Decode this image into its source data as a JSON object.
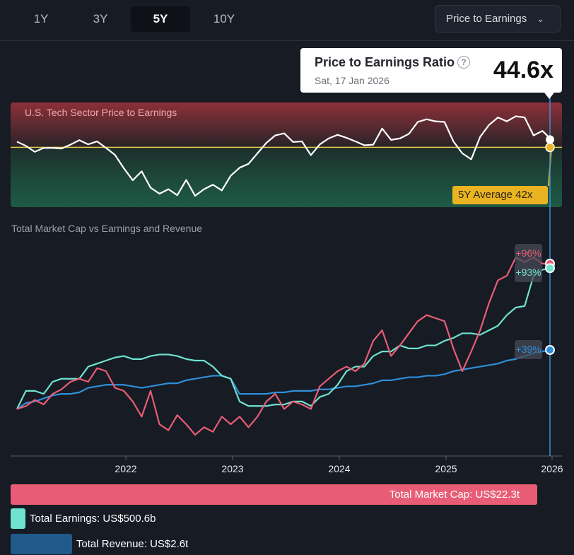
{
  "tabs": [
    {
      "label": "1Y",
      "active": false
    },
    {
      "label": "3Y",
      "active": false
    },
    {
      "label": "5Y",
      "active": true
    },
    {
      "label": "10Y",
      "active": false
    }
  ],
  "metric_dropdown": {
    "selected": "Price to Earnings",
    "icon": "chevron-down-icon"
  },
  "tooltip": {
    "title": "Price to Earnings Ratio",
    "help_icon": "?",
    "date": "Sat, 17 Jan 2026",
    "value": "44.6x"
  },
  "colors": {
    "market_cap": "#e85d75",
    "earnings": "#6fe3cf",
    "revenue": "#2f8fd8",
    "average": "#e9b321",
    "cursor": "#3d8fd6",
    "background": "#161b24"
  },
  "chart_data": [
    {
      "type": "line",
      "title": "U.S. Tech Sector Price to Earnings",
      "ylim": [
        22,
        57
      ],
      "average": {
        "label": "5Y Average 42x",
        "value": 42
      },
      "x": [
        "2021-01",
        "2021-02",
        "2021-03",
        "2021-04",
        "2021-05",
        "2021-06",
        "2021-07",
        "2021-08",
        "2021-09",
        "2021-10",
        "2021-11",
        "2021-12",
        "2022-01",
        "2022-02",
        "2022-03",
        "2022-04",
        "2022-05",
        "2022-06",
        "2022-07",
        "2022-08",
        "2022-09",
        "2022-10",
        "2022-11",
        "2022-12",
        "2023-01",
        "2023-02",
        "2023-03",
        "2023-04",
        "2023-05",
        "2023-06",
        "2023-07",
        "2023-08",
        "2023-09",
        "2023-10",
        "2023-11",
        "2023-12",
        "2024-01",
        "2024-02",
        "2024-03",
        "2024-04",
        "2024-05",
        "2024-06",
        "2024-07",
        "2024-08",
        "2024-09",
        "2024-10",
        "2024-11",
        "2024-12",
        "2025-01",
        "2025-02",
        "2025-03",
        "2025-04",
        "2025-05",
        "2025-06",
        "2025-07",
        "2025-08",
        "2025-09",
        "2025-10",
        "2025-11",
        "2025-12",
        "2026-01"
      ],
      "values": [
        43.9,
        42.5,
        40.5,
        41.8,
        41.8,
        41.6,
        42.9,
        44.4,
        43.0,
        44.0,
        41.8,
        39.5,
        35.0,
        31.0,
        34.0,
        28.5,
        26.5,
        28.0,
        26.0,
        31.1,
        25.8,
        28.0,
        29.5,
        27.6,
        32.5,
        35.2,
        36.5,
        40.0,
        43.5,
        46.0,
        46.7,
        43.8,
        44.0,
        39.4,
        43.0,
        45.0,
        46.2,
        45.2,
        44.0,
        42.7,
        42.9,
        48.3,
        44.5,
        45.0,
        46.5,
        50.5,
        51.4,
        50.7,
        50.5,
        44.0,
        40.0,
        38.0,
        45.5,
        49.5,
        52.0,
        50.7,
        52.4,
        52.0,
        46.0,
        47.5,
        44.6
      ]
    },
    {
      "type": "line",
      "title": "Total Market Cap vs Earnings and Revenue",
      "ylim": [
        -31,
        116
      ],
      "xticks": [
        "2022",
        "2023",
        "2024",
        "2025",
        "2026"
      ],
      "series": [
        {
          "key": "market_cap",
          "end_label": "+96%",
          "values": [
            0,
            2,
            6,
            3,
            10,
            13,
            18,
            20,
            18,
            27,
            25,
            14,
            12,
            5,
            -5,
            12,
            -10,
            -14,
            -4,
            -10,
            -17,
            -12,
            -15,
            -5,
            -10,
            -5,
            -12,
            -5,
            5,
            10,
            0,
            5,
            3,
            0,
            15,
            20,
            25,
            28,
            25,
            30,
            45,
            52,
            35,
            42,
            50,
            58,
            62,
            60,
            58,
            40,
            25,
            38,
            52,
            70,
            85,
            88,
            100,
            97,
            100,
            96,
            96
          ]
        },
        {
          "key": "earnings",
          "end_label": "+93%",
          "values": [
            0,
            12,
            12,
            10,
            18,
            20,
            20,
            20,
            28,
            30,
            32,
            34,
            35,
            33,
            33,
            35,
            36,
            36,
            35,
            33,
            32,
            32,
            28,
            22,
            20,
            5,
            2,
            2,
            2,
            3,
            3,
            5,
            5,
            2,
            8,
            10,
            16,
            25,
            28,
            28,
            35,
            38,
            38,
            42,
            40,
            40,
            42,
            42,
            45,
            47,
            50,
            50,
            49,
            52,
            55,
            62,
            67,
            68,
            88,
            92,
            93
          ]
        },
        {
          "key": "revenue",
          "end_label": "+39%",
          "values": [
            0,
            4,
            5,
            7,
            9,
            10,
            10,
            11,
            14,
            15,
            16,
            16,
            16,
            15,
            14,
            15,
            16,
            17,
            17,
            19,
            20,
            21,
            22,
            22,
            20,
            10,
            10,
            10,
            10,
            11,
            11,
            12,
            12,
            12,
            13,
            13,
            14,
            15,
            15,
            16,
            17,
            19,
            19,
            20,
            21,
            21,
            22,
            22,
            23,
            25,
            26,
            27,
            28,
            29,
            30,
            32,
            33,
            35,
            37,
            38,
            39
          ]
        }
      ]
    }
  ],
  "totals": [
    {
      "key": "market_cap",
      "label": "Total Market Cap: US$22.3t",
      "value_trillions": 22.3
    },
    {
      "key": "earnings",
      "label": "Total Earnings: US$500.6b",
      "value_trillions": 0.5006
    },
    {
      "key": "revenue",
      "label": "Total Revenue: US$2.6t",
      "value_trillions": 2.6
    }
  ]
}
